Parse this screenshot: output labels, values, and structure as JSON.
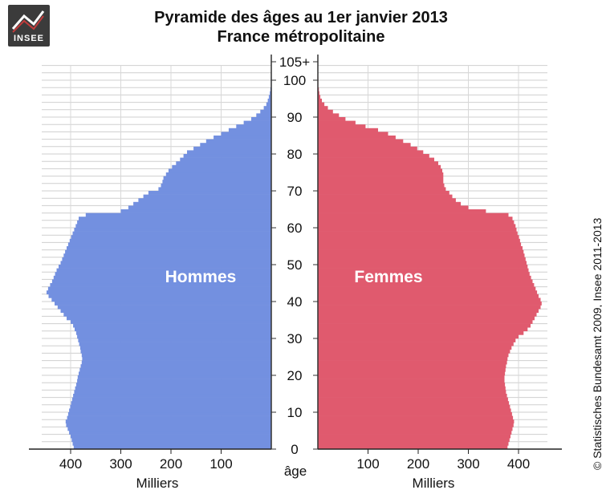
{
  "logo": {
    "text": "INSEE"
  },
  "credit": "© Statistisches Bundesamt 2009, Insee 2011-2013",
  "chart_data": {
    "type": "bar",
    "orientation": "horizontal-pyramid",
    "title": "Pyramide des âges au 1er janvier 2013",
    "subtitle": "France métropolitaine",
    "age_axis_label": "âge",
    "value_axis_label": "Milliers",
    "age_ticks": [
      "0",
      "10",
      "20",
      "30",
      "40",
      "50",
      "60",
      "70",
      "80",
      "90",
      "100",
      "105+"
    ],
    "left_value_ticks": [
      "400",
      "300",
      "200",
      "100"
    ],
    "right_value_ticks": [
      "100",
      "200",
      "300",
      "400"
    ],
    "value_range": [
      0,
      470
    ],
    "grid": true,
    "series": [
      {
        "name": "Hommes",
        "color": "#7390e0",
        "values": [
          394,
          396,
          398,
          400,
          403,
          406,
          409,
          410,
          407,
          405,
          403,
          401,
          399,
          397,
          395,
          393,
          391,
          389,
          387,
          386,
          384,
          382,
          380,
          378,
          377,
          378,
          380,
          381,
          383,
          385,
          387,
          389,
          392,
          395,
          400,
          408,
          414,
          420,
          426,
          432,
          438,
          444,
          448,
          445,
          441,
          437,
          434,
          431,
          428,
          424,
          420,
          417,
          414,
          411,
          408,
          405,
          402,
          399,
          396,
          393,
          390,
          387,
          384,
          370,
          300,
          285,
          275,
          265,
          255,
          245,
          225,
          220,
          217,
          215,
          210,
          205,
          198,
          190,
          182,
          175,
          168,
          155,
          142,
          130,
          115,
          100,
          85,
          70,
          55,
          40,
          30,
          22,
          15,
          10,
          7,
          5,
          3,
          2,
          1,
          1,
          1,
          0,
          0,
          0,
          0,
          0
        ]
      },
      {
        "name": "Femmes",
        "color": "#e05a6e",
        "values": [
          378,
          380,
          382,
          384,
          386,
          388,
          390,
          391,
          389,
          387,
          385,
          383,
          381,
          379,
          377,
          375,
          374,
          373,
          372,
          372,
          373,
          374,
          375,
          377,
          378,
          380,
          383,
          386,
          390,
          394,
          400,
          410,
          418,
          424,
          428,
          432,
          436,
          440,
          444,
          446,
          444,
          440,
          437,
          434,
          431,
          428,
          425,
          422,
          420,
          418,
          416,
          414,
          412,
          410,
          408,
          405,
          403,
          401,
          398,
          396,
          394,
          391,
          388,
          380,
          335,
          300,
          285,
          275,
          268,
          262,
          255,
          252,
          250,
          250,
          250,
          248,
          245,
          240,
          232,
          222,
          210,
          198,
          185,
          170,
          155,
          140,
          120,
          95,
          75,
          55,
          42,
          30,
          20,
          13,
          8,
          5,
          3,
          2,
          1,
          1,
          1,
          0,
          0,
          0,
          0,
          0
        ]
      }
    ]
  }
}
